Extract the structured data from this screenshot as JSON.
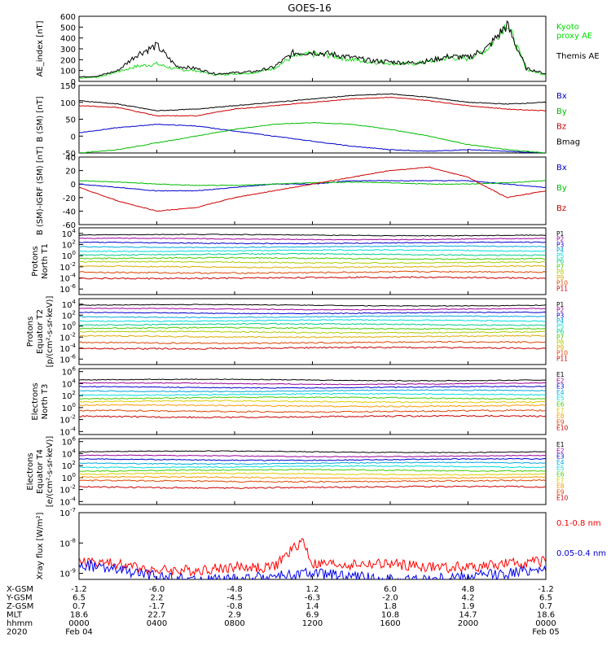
{
  "title": "GOES-16",
  "chart_data": [
    {
      "type": "line",
      "ylabel": "AE_index [nT]",
      "yticks": [
        "600",
        "500",
        "400",
        "300",
        "200",
        "100",
        "0"
      ],
      "ylim": [
        0,
        600
      ],
      "legend": [
        {
          "name": "Kyoto proxy AE",
          "lines": [
            "Kyoto",
            "proxy AE"
          ],
          "color": "#00dd00"
        },
        {
          "name": "Themis AE",
          "lines": [
            "Themis AE"
          ],
          "color": "#000000"
        }
      ],
      "series": [
        {
          "name": "Kyoto proxy AE",
          "color": "#22dd22",
          "x": [
            0,
            1,
            2,
            3,
            4,
            5,
            6,
            7,
            8,
            9,
            10,
            11,
            12,
            13,
            14,
            15,
            16,
            17,
            18,
            19,
            20,
            21,
            22,
            23,
            24
          ],
          "y": [
            30,
            40,
            90,
            140,
            160,
            110,
            100,
            60,
            70,
            80,
            120,
            230,
            250,
            240,
            200,
            180,
            170,
            160,
            180,
            220,
            210,
            300,
            540,
            110,
            60
          ]
        },
        {
          "name": "Themis AE",
          "color": "#000000",
          "x": [
            0,
            1,
            2,
            3,
            4,
            5,
            6,
            7,
            8,
            9,
            10,
            11,
            12,
            13,
            14,
            15,
            16,
            17,
            18,
            19,
            20,
            21,
            22,
            23,
            24
          ],
          "y": [
            40,
            50,
            100,
            250,
            330,
            140,
            120,
            70,
            80,
            90,
            130,
            260,
            270,
            250,
            220,
            190,
            180,
            170,
            190,
            230,
            220,
            310,
            520,
            120,
            70
          ]
        }
      ]
    },
    {
      "type": "line",
      "ylabel": "B (SM) [nT]",
      "yticks": [
        "150",
        "100",
        "50",
        "0",
        "-50"
      ],
      "ylim": [
        -50,
        150
      ],
      "legend": [
        {
          "name": "Bx",
          "lines": [
            "Bx"
          ],
          "color": "#0000cc"
        },
        {
          "name": "By",
          "lines": [
            "By"
          ],
          "color": "#00bb00"
        },
        {
          "name": "Bz",
          "lines": [
            "Bz"
          ],
          "color": "#cc0000"
        },
        {
          "name": "Bmag",
          "lines": [
            "Bmag"
          ],
          "color": "#000000"
        }
      ],
      "series": [
        {
          "name": "Bx",
          "color": "#0000cc",
          "x": [
            0,
            2,
            4,
            6,
            8,
            10,
            12,
            14,
            16,
            18,
            20,
            22,
            24
          ],
          "y": [
            10,
            25,
            35,
            30,
            15,
            0,
            -15,
            -30,
            -40,
            -45,
            -40,
            -45,
            -50
          ]
        },
        {
          "name": "By",
          "color": "#00bb00",
          "x": [
            0,
            2,
            4,
            6,
            8,
            10,
            12,
            14,
            16,
            18,
            20,
            22,
            24
          ],
          "y": [
            -50,
            -40,
            -20,
            0,
            20,
            35,
            40,
            35,
            20,
            0,
            -25,
            -40,
            -50
          ]
        },
        {
          "name": "Bz",
          "color": "#cc0000",
          "x": [
            0,
            2,
            4,
            6,
            8,
            10,
            12,
            14,
            16,
            18,
            20,
            22,
            24
          ],
          "y": [
            90,
            85,
            60,
            60,
            80,
            90,
            100,
            110,
            115,
            105,
            90,
            80,
            75
          ]
        },
        {
          "name": "Bmag",
          "color": "#000000",
          "x": [
            0,
            2,
            4,
            6,
            8,
            10,
            12,
            14,
            16,
            18,
            20,
            22,
            24
          ],
          "y": [
            105,
            95,
            75,
            80,
            90,
            100,
            110,
            120,
            125,
            115,
            100,
            95,
            100
          ]
        }
      ]
    },
    {
      "type": "line",
      "ylabel": "B (SM)-IGRF (SM) [nT]",
      "yticks": [
        "40",
        "20",
        "0",
        "-20",
        "-40",
        "-60"
      ],
      "ylim": [
        -60,
        40
      ],
      "legend": [
        {
          "name": "Bx",
          "lines": [
            "Bx"
          ],
          "color": "#0000cc"
        },
        {
          "name": "By",
          "lines": [
            "By"
          ],
          "color": "#00bb00"
        },
        {
          "name": "Bz",
          "lines": [
            "Bz"
          ],
          "color": "#cc0000"
        }
      ],
      "series": [
        {
          "name": "Bx",
          "color": "#0000cc",
          "x": [
            0,
            2,
            4,
            6,
            8,
            10,
            12,
            14,
            16,
            18,
            20,
            22,
            24
          ],
          "y": [
            0,
            -5,
            -10,
            -10,
            -5,
            0,
            0,
            5,
            5,
            5,
            5,
            0,
            -5
          ]
        },
        {
          "name": "By",
          "color": "#00bb00",
          "x": [
            0,
            2,
            4,
            6,
            8,
            10,
            12,
            14,
            16,
            18,
            20,
            22,
            24
          ],
          "y": [
            5,
            3,
            0,
            -2,
            -2,
            0,
            2,
            3,
            2,
            0,
            0,
            2,
            5
          ]
        },
        {
          "name": "Bz",
          "color": "#cc0000",
          "x": [
            0,
            2,
            4,
            6,
            8,
            10,
            12,
            14,
            16,
            18,
            20,
            22,
            24
          ],
          "y": [
            -5,
            -25,
            -40,
            -35,
            -20,
            -10,
            0,
            10,
            20,
            25,
            10,
            -20,
            -10
          ]
        }
      ]
    },
    {
      "type": "line",
      "yscale": "log",
      "ylabel_lines": [
        "Protons",
        "North T1"
      ],
      "yticks_exp": [
        4,
        2,
        0,
        -2,
        -4,
        -6
      ],
      "ylim_exp": [
        -7,
        5
      ],
      "legend": [
        {
          "name": "P1",
          "lines": [
            "P1"
          ],
          "color": "#000000"
        },
        {
          "name": "P2",
          "lines": [
            "P2"
          ],
          "color": "#990099"
        },
        {
          "name": "P3",
          "lines": [
            "P3"
          ],
          "color": "#0000cc"
        },
        {
          "name": "P4",
          "lines": [
            "P4"
          ],
          "color": "#00aadd"
        },
        {
          "name": "P5",
          "lines": [
            "P5"
          ],
          "color": "#00dddd"
        },
        {
          "name": "P6",
          "lines": [
            "P6"
          ],
          "color": "#00cc88"
        },
        {
          "name": "P7",
          "lines": [
            "P7"
          ],
          "color": "#44cc00"
        },
        {
          "name": "P8",
          "lines": [
            "P8"
          ],
          "color": "#aacc00"
        },
        {
          "name": "P9",
          "lines": [
            "P9"
          ],
          "color": "#ddaa00"
        },
        {
          "name": "P10",
          "lines": [
            "P10"
          ],
          "color": "#dd4400"
        },
        {
          "name": "P11",
          "lines": [
            "P11"
          ],
          "color": "#cc0000"
        }
      ],
      "series_levels_log10": [
        3.7,
        3.0,
        2.3,
        1.6,
        0.9,
        0.2,
        -0.5,
        -1.2,
        -2.0,
        -3.0,
        -4.0
      ]
    },
    {
      "type": "line",
      "yscale": "log",
      "ylabel_lines": [
        "Protons",
        "Equator T2",
        "[p/(cm²-s-sr-keV)]"
      ],
      "yticks_exp": [
        4,
        2,
        0,
        -2,
        -4,
        -6
      ],
      "ylim_exp": [
        -7,
        5
      ],
      "legend": [
        {
          "name": "P1",
          "lines": [
            "P1"
          ],
          "color": "#000000"
        },
        {
          "name": "P2",
          "lines": [
            "P2"
          ],
          "color": "#990099"
        },
        {
          "name": "P3",
          "lines": [
            "P3"
          ],
          "color": "#0000cc"
        },
        {
          "name": "P4",
          "lines": [
            "P4"
          ],
          "color": "#00aadd"
        },
        {
          "name": "P5",
          "lines": [
            "P5"
          ],
          "color": "#00dddd"
        },
        {
          "name": "P6",
          "lines": [
            "P6"
          ],
          "color": "#00cc88"
        },
        {
          "name": "P7",
          "lines": [
            "P7"
          ],
          "color": "#44cc00"
        },
        {
          "name": "P8",
          "lines": [
            "P8"
          ],
          "color": "#aacc00"
        },
        {
          "name": "P9",
          "lines": [
            "P9"
          ],
          "color": "#ddaa00"
        },
        {
          "name": "P10",
          "lines": [
            "P10"
          ],
          "color": "#dd4400"
        },
        {
          "name": "P11",
          "lines": [
            "P11"
          ],
          "color": "#cc0000"
        }
      ],
      "series_levels_log10": [
        3.8,
        3.1,
        2.4,
        1.7,
        1.0,
        0.3,
        -0.4,
        -1.1,
        -1.9,
        -3.0,
        -4.0
      ]
    },
    {
      "type": "line",
      "yscale": "log",
      "ylabel_lines": [
        "Electrons",
        "North T3"
      ],
      "yticks_exp": [
        6,
        4,
        2,
        0,
        -2,
        -4
      ],
      "ylim_exp": [
        -4.5,
        6.5
      ],
      "legend": [
        {
          "name": "E1",
          "lines": [
            "E1"
          ],
          "color": "#000000"
        },
        {
          "name": "E2",
          "lines": [
            "E2"
          ],
          "color": "#990099"
        },
        {
          "name": "E3",
          "lines": [
            "E3"
          ],
          "color": "#0000cc"
        },
        {
          "name": "E4",
          "lines": [
            "E4"
          ],
          "color": "#00aadd"
        },
        {
          "name": "E5",
          "lines": [
            "E5"
          ],
          "color": "#00dddd"
        },
        {
          "name": "E6",
          "lines": [
            "E6"
          ],
          "color": "#44cc00"
        },
        {
          "name": "E7",
          "lines": [
            "E7"
          ],
          "color": "#ddcc00"
        },
        {
          "name": "E8",
          "lines": [
            "E8"
          ],
          "color": "#ff9900"
        },
        {
          "name": "E9",
          "lines": [
            "E9"
          ],
          "color": "#dd4400"
        },
        {
          "name": "E10",
          "lines": [
            "E10"
          ],
          "color": "#cc0000"
        }
      ],
      "series_levels_log10": [
        4.6,
        4.0,
        3.4,
        2.8,
        2.2,
        1.6,
        1.0,
        0.3,
        -0.6,
        -1.5
      ]
    },
    {
      "type": "line",
      "yscale": "log",
      "ylabel_lines": [
        "Electrons",
        "Equator T4",
        "[e/(cm²-s-sr-keV)]"
      ],
      "yticks_exp": [
        6,
        4,
        2,
        0,
        -2,
        -4
      ],
      "ylim_exp": [
        -4.5,
        6.5
      ],
      "legend": [
        {
          "name": "E1",
          "lines": [
            "E1"
          ],
          "color": "#000000"
        },
        {
          "name": "E2",
          "lines": [
            "E2"
          ],
          "color": "#990099"
        },
        {
          "name": "E3",
          "lines": [
            "E3"
          ],
          "color": "#0000cc"
        },
        {
          "name": "E4",
          "lines": [
            "E4"
          ],
          "color": "#00aadd"
        },
        {
          "name": "E5",
          "lines": [
            "E5"
          ],
          "color": "#00dddd"
        },
        {
          "name": "E6",
          "lines": [
            "E6"
          ],
          "color": "#44cc00"
        },
        {
          "name": "E7",
          "lines": [
            "E7"
          ],
          "color": "#ddcc00"
        },
        {
          "name": "E8",
          "lines": [
            "E8"
          ],
          "color": "#ff9900"
        },
        {
          "name": "E9",
          "lines": [
            "E9"
          ],
          "color": "#dd4400"
        },
        {
          "name": "E10",
          "lines": [
            "E10"
          ],
          "color": "#cc0000"
        }
      ],
      "series_levels_log10": [
        4.3,
        3.6,
        3.0,
        2.4,
        1.8,
        1.2,
        0.6,
        0.0,
        -0.6,
        -1.6
      ]
    },
    {
      "type": "line",
      "yscale": "log",
      "ylabel": "Xray flux [W/m²]",
      "yticks_exp": [
        -7,
        -8,
        -9
      ],
      "ylim_exp": [
        -9.2,
        -7
      ],
      "legend": [
        {
          "name": "0.1-0.8 nm",
          "lines": [
            "0.1-0.8 nm"
          ],
          "color": "#ee0000"
        },
        {
          "name": "0.05-0.4 nm",
          "lines": [
            "0.05-0.4 nm"
          ],
          "color": "#0000cc"
        }
      ],
      "series": [
        {
          "name": "0.1-0.8 nm",
          "color": "#ff0000",
          "x": [
            0,
            2,
            4,
            6,
            8,
            10,
            11.5,
            12,
            14,
            16,
            18,
            20,
            22,
            24
          ],
          "y_log10": [
            -8.6,
            -8.7,
            -8.9,
            -8.9,
            -8.8,
            -8.8,
            -7.9,
            -8.7,
            -8.7,
            -8.7,
            -8.8,
            -8.8,
            -8.7,
            -8.6
          ]
        },
        {
          "name": "0.05-0.4 nm",
          "color": "#0000ee",
          "x": [
            0,
            2,
            4,
            6,
            8,
            10,
            12,
            14,
            16,
            18,
            20,
            22,
            24
          ],
          "y_log10": [
            -8.7,
            -8.9,
            -9.1,
            -9.2,
            -9.2,
            -9.1,
            -9.0,
            -9.1,
            -9.2,
            -9.2,
            -9.1,
            -9.0,
            -8.8
          ]
        }
      ]
    }
  ],
  "x_axis": {
    "rows": [
      {
        "label": "X-GSM",
        "values": [
          "-1.2",
          "-6.0",
          "-4.8",
          "1.2",
          "6.0",
          "4.8",
          "-1.2"
        ]
      },
      {
        "label": "Y-GSM",
        "values": [
          "6.5",
          "2.2",
          "-4.5",
          "-6.3",
          "-2.0",
          "4.2",
          "6.5"
        ]
      },
      {
        "label": "Z-GSM",
        "values": [
          "0.7",
          "-1.7",
          "-0.8",
          "1.4",
          "1.8",
          "1.9",
          "0.7"
        ]
      },
      {
        "label": "MLT",
        "values": [
          "18.6",
          "22.7",
          "2.9",
          "6.9",
          "10.8",
          "14.7",
          "18.6"
        ]
      },
      {
        "label": "hhmm",
        "values": [
          "0000",
          "0400",
          "0800",
          "1200",
          "1600",
          "2000",
          "0000"
        ]
      }
    ],
    "year": "2020",
    "date_start": "Feb 04",
    "date_end": "Feb 05",
    "xlim_hours": [
      0,
      24
    ]
  }
}
